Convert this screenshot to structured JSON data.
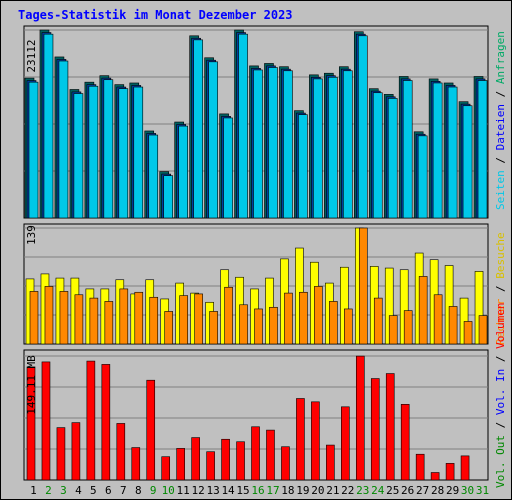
{
  "title": "Tages-Statistik im Monat Dezember 2023",
  "colors": {
    "background": "#c0c0c0",
    "title": "#0000ff",
    "grid": "#808080",
    "hits": "#00aa66",
    "files": "#0000ff",
    "pages": "#00c8e8",
    "visits": "#ffff00",
    "hosts": "#ff8800",
    "volume_out": "#008800",
    "volume_in": "#0000ff",
    "volume": "#ff0000",
    "weekend_label": "#008800"
  },
  "chart_data": [
    {
      "type": "bar",
      "name_key": "traffic",
      "axis_label": "23112",
      "ylim": [
        0,
        23112
      ],
      "legend": [
        "Anfragen",
        "/",
        "Dateien",
        "/",
        "Seiten"
      ],
      "series": [
        {
          "name": "Anfragen",
          "values": [
            17200,
            23112,
            19800,
            15800,
            16700,
            17500,
            16400,
            16600,
            10700,
            5700,
            11800,
            22400,
            19700,
            12800,
            23112,
            18700,
            19000,
            18600,
            13200,
            17600,
            17800,
            18600,
            22900,
            15900,
            15200,
            17400,
            10600,
            17100,
            16600,
            14300,
            17400
          ]
        },
        {
          "name": "Dateien",
          "values": [
            16900,
            22800,
            19500,
            15500,
            16400,
            17200,
            16100,
            16300,
            10400,
            5400,
            11500,
            22100,
            19400,
            12500,
            22800,
            18400,
            18700,
            18300,
            12900,
            17300,
            17500,
            18300,
            22600,
            15600,
            14900,
            17100,
            10300,
            16800,
            16300,
            14000,
            17100
          ]
        },
        {
          "name": "Seiten",
          "values": [
            16700,
            22600,
            19300,
            15300,
            16200,
            17000,
            15900,
            16100,
            10200,
            5200,
            11300,
            21900,
            19200,
            12300,
            22600,
            18200,
            18500,
            18100,
            12700,
            17100,
            17300,
            18100,
            22400,
            15400,
            14700,
            16900,
            10100,
            16600,
            16100,
            13800,
            16900
          ]
        }
      ]
    },
    {
      "type": "bar",
      "name_key": "visits",
      "axis_label": "139",
      "ylim": [
        0,
        139
      ],
      "legend": [
        "Besuche",
        "/",
        "Rechner"
      ],
      "series": [
        {
          "name": "Besuche",
          "values": [
            78,
            84,
            79,
            79,
            66,
            66,
            77,
            60,
            77,
            54,
            73,
            61,
            50,
            89,
            80,
            66,
            79,
            102,
            115,
            98,
            73,
            92,
            139,
            93,
            91,
            89,
            109,
            101,
            94,
            55,
            87
          ]
        },
        {
          "name": "Rechner",
          "values": [
            63,
            69,
            63,
            59,
            55,
            51,
            66,
            62,
            56,
            39,
            58,
            60,
            39,
            68,
            47,
            42,
            44,
            61,
            62,
            69,
            51,
            42,
            139,
            55,
            34,
            40,
            81,
            59,
            45,
            27,
            34
          ]
        }
      ]
    },
    {
      "type": "bar",
      "name_key": "volume",
      "axis_label": "149.11 MB",
      "ylim": [
        0,
        149.11
      ],
      "legend": [
        "Volumen",
        "/",
        "Vol. In",
        "/",
        "Vol. Out"
      ],
      "series": [
        {
          "name": "Volumen",
          "values": [
            136,
            142,
            63,
            69,
            143,
            139,
            68,
            39,
            120,
            28,
            38,
            51,
            34,
            49,
            46,
            64,
            60,
            40,
            98,
            94,
            42,
            88,
            149,
            122,
            128,
            91,
            31,
            9,
            20,
            29,
            0
          ]
        }
      ]
    }
  ],
  "x_labels": [
    "1",
    "2",
    "3",
    "4",
    "5",
    "6",
    "7",
    "8",
    "9",
    "10",
    "11",
    "12",
    "13",
    "14",
    "15",
    "16",
    "17",
    "18",
    "19",
    "20",
    "21",
    "22",
    "23",
    "24",
    "25",
    "26",
    "27",
    "28",
    "29",
    "30",
    "31"
  ],
  "weekend_days": [
    2,
    3,
    9,
    10,
    16,
    17,
    23,
    24,
    30,
    31
  ]
}
